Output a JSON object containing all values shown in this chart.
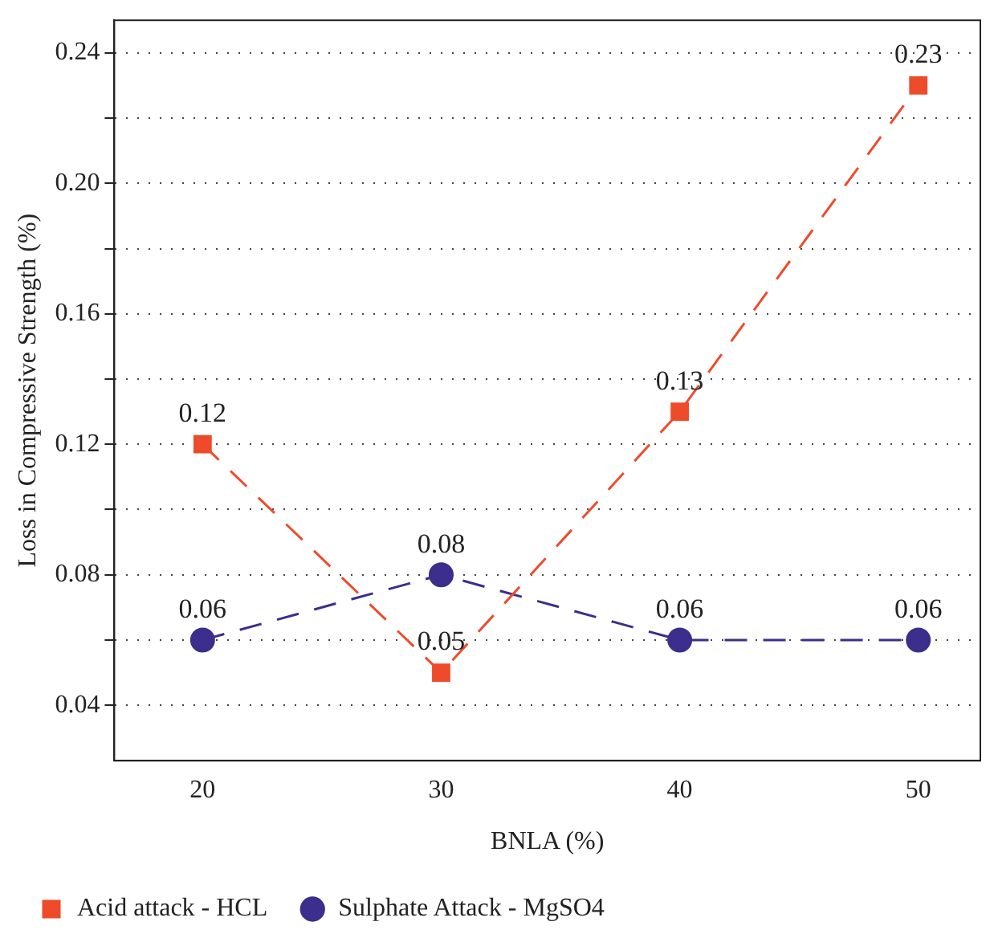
{
  "chart_data": {
    "type": "line",
    "xlabel": "BNLA (%)",
    "ylabel": "Loss in Compressive Strength (%)",
    "x": [
      20,
      30,
      40,
      50
    ],
    "series": [
      {
        "name": "Acid attack - HCL",
        "color": "#ee4b2b",
        "marker": "square",
        "values": [
          0.12,
          0.05,
          0.13,
          0.23
        ]
      },
      {
        "name": "Sulphate Attack - MgSO4",
        "color": "#3b2e8c",
        "marker": "circle",
        "values": [
          0.06,
          0.08,
          0.06,
          0.06
        ]
      }
    ],
    "xlim": [
      16.3,
      52.6
    ],
    "xticks": [
      20,
      30,
      40,
      50
    ],
    "ylim": [
      0.023,
      0.25
    ],
    "yticks": [
      {
        "value": 0.04,
        "label": "0.04"
      },
      {
        "value": 0.06,
        "label": null
      },
      {
        "value": 0.08,
        "label": "0.08"
      },
      {
        "value": 0.1,
        "label": null
      },
      {
        "value": 0.12,
        "label": "0.12"
      },
      {
        "value": 0.14,
        "label": null
      },
      {
        "value": 0.16,
        "label": "0.16"
      },
      {
        "value": 0.18,
        "label": null
      },
      {
        "value": 0.2,
        "label": "0.20"
      },
      {
        "value": 0.22,
        "label": null
      },
      {
        "value": 0.24,
        "label": "0.24"
      }
    ],
    "grid": "y",
    "legend": "bottom",
    "line_style": "dashed",
    "data_labels": true
  }
}
